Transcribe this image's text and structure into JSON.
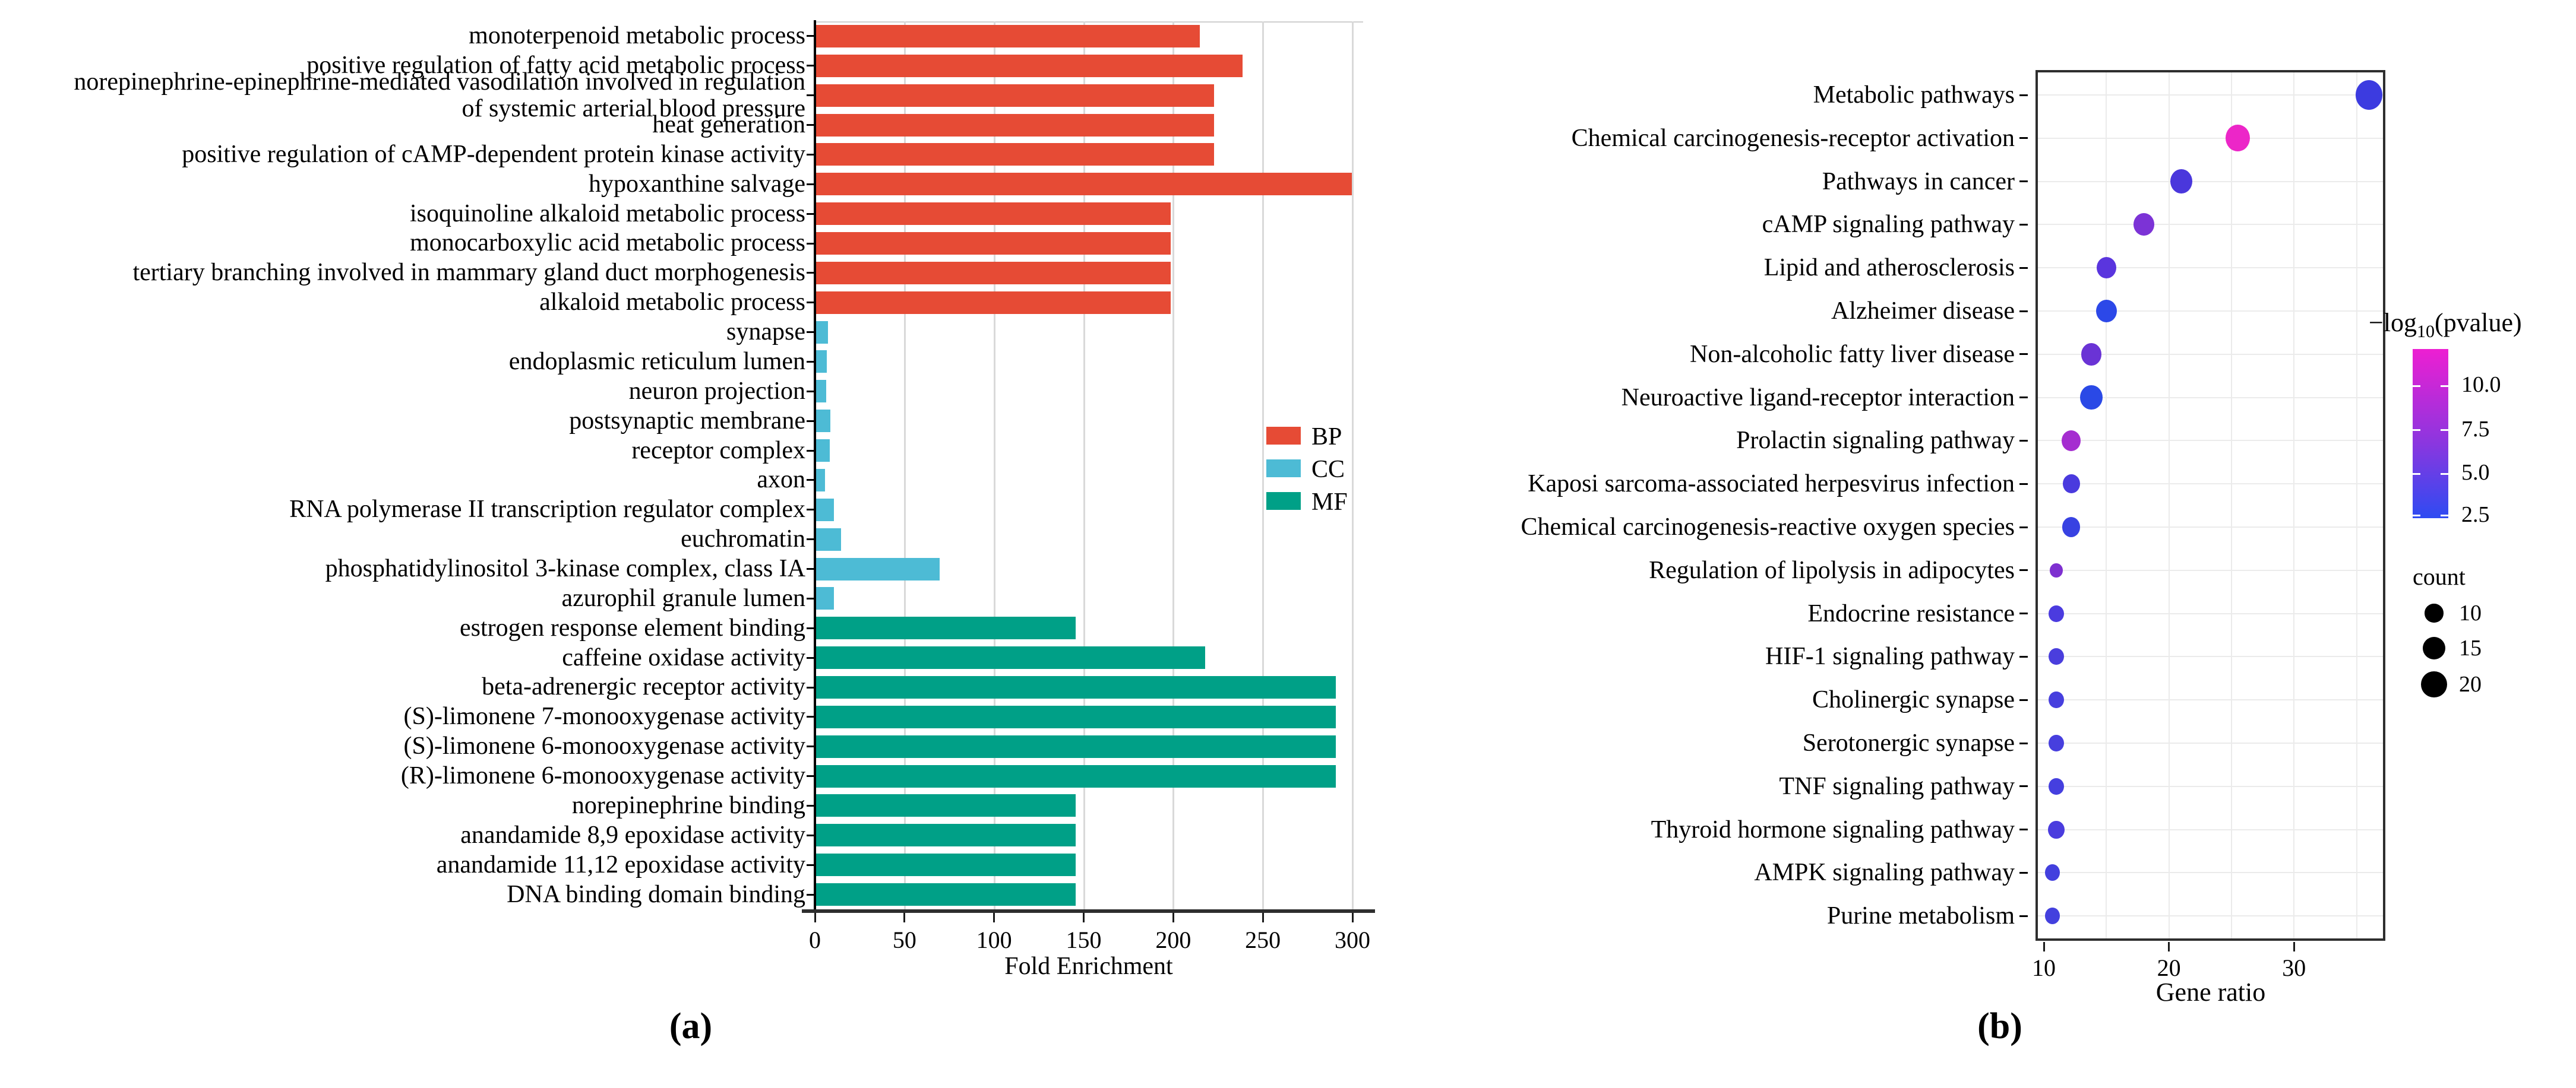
{
  "figure": {
    "caption_a": "(a)",
    "caption_b": "(b)"
  },
  "chart_data": [
    {
      "type": "bar",
      "orientation": "horizontal",
      "title": "",
      "xlabel": "Fold Enrichment",
      "xlim": [
        0,
        310
      ],
      "xticks": [
        0,
        50,
        100,
        150,
        200,
        250,
        300
      ],
      "grid": "vertical",
      "legend_position": "inside-right",
      "groups": [
        {
          "name": "BP",
          "color": "#E64B35"
        },
        {
          "name": "CC",
          "color": "#4DBBD5"
        },
        {
          "name": "MF",
          "color": "#00A087"
        }
      ],
      "bars": [
        {
          "label": "monoterpenoid metabolic process",
          "group": "BP",
          "value": 214
        },
        {
          "label": "positive regulation of fatty acid metabolic process",
          "group": "BP",
          "value": 238
        },
        {
          "label": "norepinephrine-epinephrine-mediated vasodilation involved in regulation\nof systemic arterial blood pressure",
          "group": "BP",
          "value": 222
        },
        {
          "label": "heat generation",
          "group": "BP",
          "value": 222
        },
        {
          "label": "positive regulation of cAMP-dependent protein kinase activity",
          "group": "BP",
          "value": 222
        },
        {
          "label": "hypoxanthine salvage",
          "group": "BP",
          "value": 299
        },
        {
          "label": "isoquinoline alkaloid metabolic process",
          "group": "BP",
          "value": 198
        },
        {
          "label": "monocarboxylic acid metabolic process",
          "group": "BP",
          "value": 198
        },
        {
          "label": "tertiary branching involved in mammary gland duct morphogenesis",
          "group": "BP",
          "value": 198
        },
        {
          "label": "alkaloid metabolic process",
          "group": "BP",
          "value": 198
        },
        {
          "label": "synapse",
          "group": "CC",
          "value": 6.5
        },
        {
          "label": "endoplasmic reticulum lumen",
          "group": "CC",
          "value": 6
        },
        {
          "label": "neuron projection",
          "group": "CC",
          "value": 5.5
        },
        {
          "label": "postsynaptic membrane",
          "group": "CC",
          "value": 8
        },
        {
          "label": "receptor complex",
          "group": "CC",
          "value": 7.5
        },
        {
          "label": "axon",
          "group": "CC",
          "value": 5
        },
        {
          "label": "RNA polymerase II transcription regulator complex",
          "group": "CC",
          "value": 10
        },
        {
          "label": "euchromatin",
          "group": "CC",
          "value": 14
        },
        {
          "label": "phosphatidylinositol 3-kinase complex, class IA",
          "group": "CC",
          "value": 69
        },
        {
          "label": "azurophil granule lumen",
          "group": "CC",
          "value": 10
        },
        {
          "label": "estrogen response element binding",
          "group": "MF",
          "value": 145
        },
        {
          "label": "caffeine oxidase activity",
          "group": "MF",
          "value": 217
        },
        {
          "label": "beta-adrenergic receptor activity",
          "group": "MF",
          "value": 290
        },
        {
          "label": "(S)-limonene 7-monooxygenase activity",
          "group": "MF",
          "value": 290
        },
        {
          "label": "(S)-limonene 6-monooxygenase activity",
          "group": "MF",
          "value": 290
        },
        {
          "label": "(R)-limonene 6-monooxygenase activity",
          "group": "MF",
          "value": 290
        },
        {
          "label": "norepinephrine binding",
          "group": "MF",
          "value": 145
        },
        {
          "label": "anandamide 8,9 epoxidase activity",
          "group": "MF",
          "value": 145
        },
        {
          "label": "anandamide 11,12 epoxidase activity",
          "group": "MF",
          "value": 145
        },
        {
          "label": "DNA binding domain binding",
          "group": "MF",
          "value": 145
        }
      ]
    },
    {
      "type": "scatter",
      "title": "",
      "xlabel": "Gene ratio",
      "xticks": [
        10,
        20,
        30
      ],
      "xlim": [
        9.6,
        37.6
      ],
      "grid": "both",
      "colorbar": {
        "title_prefix": "−log",
        "title_sub": "10",
        "title_suffix": "(pvalue)",
        "ticks": [
          "10.0",
          "7.5",
          "5.0",
          "2.5"
        ],
        "top_color": "#ED1FD2",
        "mid_color": "#8C36DF",
        "bottom_color": "#2E4BF2"
      },
      "size_legend": {
        "title": "count",
        "entries": [
          10,
          15,
          20
        ]
      },
      "points": [
        {
          "label": "Metabolic pathways",
          "gene_ratio": 36,
          "count": 22,
          "neg_log10_pvalue": 4.5,
          "color": "#3C3BE0"
        },
        {
          "label": "Chemical carcinogenesis-receptor activation",
          "gene_ratio": 25.5,
          "count": 18,
          "neg_log10_pvalue": 11,
          "color": "#EC26C8"
        },
        {
          "label": "Pathways in cancer",
          "gene_ratio": 21,
          "count": 15,
          "neg_log10_pvalue": 5,
          "color": "#4A37DC"
        },
        {
          "label": "cAMP signaling pathway",
          "gene_ratio": 18,
          "count": 13,
          "neg_log10_pvalue": 7.5,
          "color": "#7C33D6"
        },
        {
          "label": "Lipid and atherosclerosis",
          "gene_ratio": 15,
          "count": 12,
          "neg_log10_pvalue": 6,
          "color": "#5A35DE"
        },
        {
          "label": "Alzheimer disease",
          "gene_ratio": 15,
          "count": 13,
          "neg_log10_pvalue": 3,
          "color": "#2C48E8"
        },
        {
          "label": "Non-alcoholic fatty liver disease",
          "gene_ratio": 13.8,
          "count": 13,
          "neg_log10_pvalue": 7,
          "color": "#6A33D5"
        },
        {
          "label": "Neuroactive ligand-receptor interaction",
          "gene_ratio": 13.8,
          "count": 15,
          "neg_log10_pvalue": 3,
          "color": "#2A49E6"
        },
        {
          "label": "Prolactin signaling pathway",
          "gene_ratio": 12.2,
          "count": 11,
          "neg_log10_pvalue": 8.5,
          "color": "#A52DD0"
        },
        {
          "label": "Kaposi sarcoma-associated herpesvirus infection",
          "gene_ratio": 12.2,
          "count": 9,
          "neg_log10_pvalue": 5,
          "color": "#4A3ADE"
        },
        {
          "label": "Chemical carcinogenesis-reactive oxygen species",
          "gene_ratio": 12.2,
          "count": 10,
          "neg_log10_pvalue": 4,
          "color": "#3842E2"
        },
        {
          "label": "Regulation of lipolysis in adipocytes",
          "gene_ratio": 11,
          "count": 5,
          "neg_log10_pvalue": 7.5,
          "color": "#7E30D0"
        },
        {
          "label": "Endocrine resistance",
          "gene_ratio": 11,
          "count": 7,
          "neg_log10_pvalue": 5,
          "color": "#4B3BDF"
        },
        {
          "label": "HIF-1 signaling pathway",
          "gene_ratio": 11,
          "count": 7,
          "neg_log10_pvalue": 4.5,
          "color": "#4A3EDD"
        },
        {
          "label": "Cholinergic synapse",
          "gene_ratio": 11,
          "count": 7,
          "neg_log10_pvalue": 4.5,
          "color": "#473FDE"
        },
        {
          "label": "Serotonergic synapse",
          "gene_ratio": 11,
          "count": 7,
          "neg_log10_pvalue": 4.5,
          "color": "#473FDE"
        },
        {
          "label": "TNF signaling pathway",
          "gene_ratio": 11,
          "count": 7,
          "neg_log10_pvalue": 4.5,
          "color": "#453FDF"
        },
        {
          "label": "Thyroid hormone signaling pathway",
          "gene_ratio": 11,
          "count": 8,
          "neg_log10_pvalue": 4.5,
          "color": "#4A3CDE"
        },
        {
          "label": "AMPK signaling pathway",
          "gene_ratio": 10.7,
          "count": 7,
          "neg_log10_pvalue": 4,
          "color": "#4340DE"
        },
        {
          "label": "Purine metabolism",
          "gene_ratio": 10.7,
          "count": 7,
          "neg_log10_pvalue": 4,
          "color": "#4340DE"
        }
      ]
    }
  ]
}
